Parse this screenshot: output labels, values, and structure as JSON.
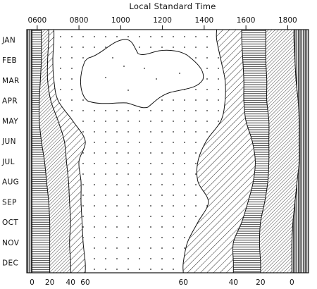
{
  "chart_data": {
    "type": "area",
    "title": "Local Standard Time",
    "x_axis": {
      "position": "top",
      "label": "Local Standard Time",
      "tick_labels": [
        "0600",
        "0800",
        "1000",
        "1200",
        "1400",
        "1600",
        "1800"
      ],
      "range_hours": [
        5.5,
        19.0
      ]
    },
    "y_axis": {
      "position": "left",
      "categories": [
        "JAN",
        "FEB",
        "MAR",
        "APR",
        "MAY",
        "JUN",
        "JUL",
        "AUG",
        "SEP",
        "OCT",
        "NOV",
        "DEC"
      ]
    },
    "bottom_labels": {
      "left": [
        "0",
        "20",
        "40",
        "60"
      ],
      "right": [
        "60",
        "40",
        "20",
        "0"
      ]
    },
    "contour_levels": [
      0,
      20,
      40,
      60
    ],
    "series": [
      {
        "side": "morning",
        "level": 0,
        "hours": [
          5.75,
          5.75,
          5.75,
          5.75,
          5.75,
          5.75,
          5.75,
          5.75,
          5.75,
          5.75,
          5.75,
          5.75
        ]
      },
      {
        "side": "morning",
        "level": 20,
        "hours": [
          6.2,
          6.2,
          6.15,
          6.1,
          6.1,
          6.2,
          6.35,
          6.45,
          6.55,
          6.6,
          6.6,
          6.6
        ]
      },
      {
        "side": "morning",
        "level": 40,
        "hours": [
          6.55,
          6.5,
          6.5,
          6.65,
          7.0,
          7.3,
          7.4,
          7.5,
          7.55,
          7.6,
          7.55,
          7.6
        ]
      },
      {
        "side": "morning",
        "level": 60,
        "hours": [
          6.8,
          6.75,
          6.8,
          7.0,
          7.7,
          8.3,
          8.0,
          8.1,
          8.1,
          8.15,
          8.2,
          8.3
        ]
      },
      {
        "side": "afternoon",
        "level": 60,
        "hours": [
          14.6,
          14.8,
          15.0,
          15.0,
          14.8,
          14.1,
          13.7,
          13.7,
          14.2,
          13.7,
          13.2,
          13.0
        ]
      },
      {
        "side": "afternoon",
        "level": 40,
        "hours": [
          15.8,
          15.85,
          15.9,
          15.9,
          16.0,
          16.3,
          16.45,
          16.35,
          16.1,
          15.8,
          15.4,
          15.4
        ]
      },
      {
        "side": "afternoon",
        "level": 20,
        "hours": [
          16.95,
          16.95,
          17.0,
          17.0,
          17.1,
          17.1,
          17.1,
          17.05,
          16.9,
          16.7,
          16.65,
          16.7
        ]
      },
      {
        "side": "afternoon",
        "level": 0,
        "hours": [
          18.3,
          18.35,
          18.4,
          18.5,
          18.55,
          18.55,
          18.55,
          18.45,
          18.35,
          18.25,
          18.2,
          18.2
        ]
      }
    ]
  }
}
